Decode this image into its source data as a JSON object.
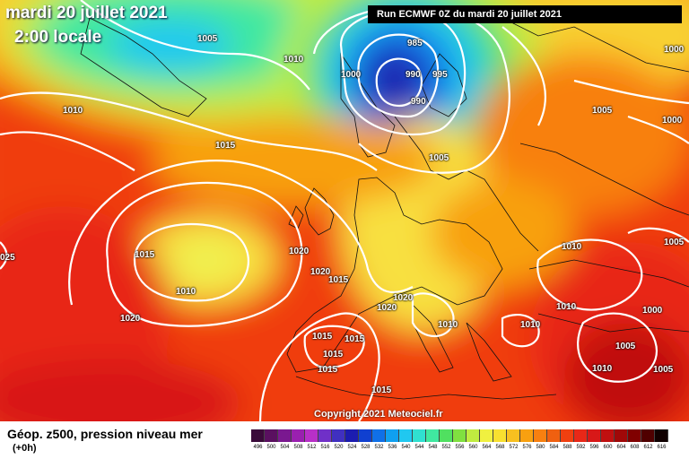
{
  "header": {
    "date": "mardi 20 juillet 2021",
    "time": "2:00 locale",
    "run": "Run ECMWF 0Z du mardi 20 juillet 2021"
  },
  "copyright": "Copyright 2021 Meteociel.fr",
  "legend": {
    "title": "Géop. z500, pression niveau mer",
    "subtitle": "(+0h)",
    "scale": [
      {
        "label": "496",
        "color": "#3a0a3a"
      },
      {
        "label": "500",
        "color": "#5a1060"
      },
      {
        "label": "504",
        "color": "#7a1890"
      },
      {
        "label": "508",
        "color": "#9a20b0"
      },
      {
        "label": "512",
        "color": "#b830c8"
      },
      {
        "label": "516",
        "color": "#7030c8"
      },
      {
        "label": "520",
        "color": "#4030c0"
      },
      {
        "label": "524",
        "color": "#1c1cb0"
      },
      {
        "label": "528",
        "color": "#1040d0"
      },
      {
        "label": "532",
        "color": "#1070e8"
      },
      {
        "label": "536",
        "color": "#10a0f0"
      },
      {
        "label": "540",
        "color": "#20c8f0"
      },
      {
        "label": "544",
        "color": "#30e0d0"
      },
      {
        "label": "548",
        "color": "#40e8a0"
      },
      {
        "label": "552",
        "color": "#50e060"
      },
      {
        "label": "556",
        "color": "#80e040"
      },
      {
        "label": "560",
        "color": "#c0ec40"
      },
      {
        "label": "564",
        "color": "#f0f040"
      },
      {
        "label": "568",
        "color": "#f8e030"
      },
      {
        "label": "572",
        "color": "#f8c020"
      },
      {
        "label": "576",
        "color": "#f8a010"
      },
      {
        "label": "580",
        "color": "#f88010"
      },
      {
        "label": "584",
        "color": "#f06010"
      },
      {
        "label": "588",
        "color": "#f04010"
      },
      {
        "label": "592",
        "color": "#e82818"
      },
      {
        "label": "596",
        "color": "#d81818"
      },
      {
        "label": "600",
        "color": "#c01010"
      },
      {
        "label": "604",
        "color": "#a00808"
      },
      {
        "label": "608",
        "color": "#800000"
      },
      {
        "label": "612",
        "color": "#500000"
      },
      {
        "label": "616",
        "color": "#100000"
      }
    ]
  },
  "isobars": [
    {
      "text": "1005",
      "id": "a"
    },
    {
      "text": "1010",
      "id": "b"
    },
    {
      "text": "1010",
      "id": "c"
    },
    {
      "text": "1015",
      "id": "d"
    },
    {
      "text": "985",
      "id": "e"
    },
    {
      "text": "1000",
      "id": "f"
    },
    {
      "text": "990",
      "id": "g"
    },
    {
      "text": "995",
      "id": "h"
    },
    {
      "text": "990",
      "id": "i"
    },
    {
      "text": "1005",
      "id": "j"
    },
    {
      "text": "1005",
      "id": "k"
    },
    {
      "text": "1000",
      "id": "l"
    },
    {
      "text": "1000",
      "id": "m"
    },
    {
      "text": "1015",
      "id": "n"
    },
    {
      "text": "1010",
      "id": "o"
    },
    {
      "text": "1020",
      "id": "p"
    },
    {
      "text": "1020",
      "id": "q"
    },
    {
      "text": "1020",
      "id": "r"
    },
    {
      "text": "1020",
      "id": "s"
    },
    {
      "text": "1015",
      "id": "t"
    },
    {
      "text": "1020",
      "id": "u"
    },
    {
      "text": "1015",
      "id": "v"
    },
    {
      "text": "1015",
      "id": "w"
    },
    {
      "text": "1015",
      "id": "x"
    },
    {
      "text": "1015",
      "id": "y"
    },
    {
      "text": "1015",
      "id": "z"
    },
    {
      "text": "1010",
      "id": "aa"
    },
    {
      "text": "1010",
      "id": "ab"
    },
    {
      "text": "1010",
      "id": "ac"
    },
    {
      "text": "1005",
      "id": "ad"
    },
    {
      "text": "1010",
      "id": "ae"
    },
    {
      "text": "1000",
      "id": "af"
    },
    {
      "text": "1005",
      "id": "ag"
    },
    {
      "text": "1010",
      "id": "ah"
    },
    {
      "text": "1005",
      "id": "ai"
    },
    {
      "text": "025",
      "id": "aj"
    }
  ]
}
